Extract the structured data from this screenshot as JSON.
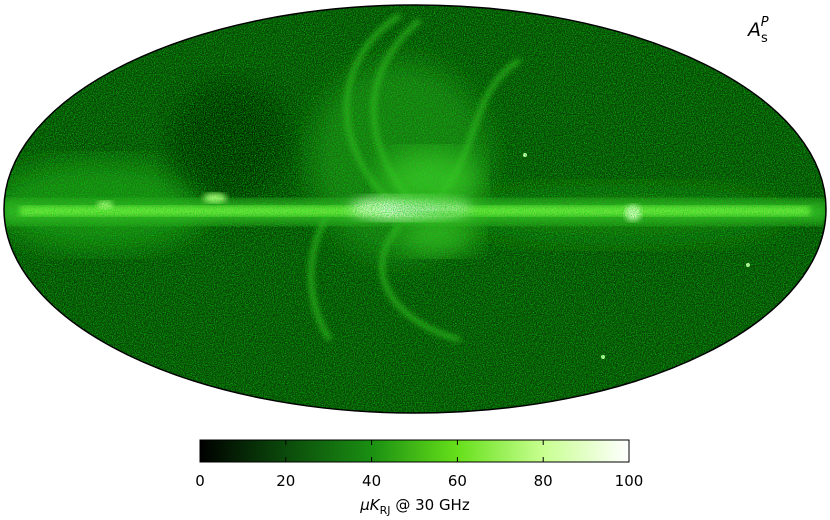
{
  "chart_data": {
    "type": "skymap",
    "annotation": {
      "base": "A",
      "sub": "s",
      "sup": "P"
    },
    "colorbar": {
      "label": {
        "base": "μK",
        "sub": "RJ",
        "rest": " @ 30 GHz"
      },
      "lim": [
        0,
        100
      ],
      "ticks": [
        0,
        20,
        40,
        60,
        80,
        100
      ],
      "colormap": [
        "#000000",
        "#0b4a0b",
        "#1a8f12",
        "#66e01a",
        "#c8ff90",
        "#ffffff"
      ]
    }
  }
}
